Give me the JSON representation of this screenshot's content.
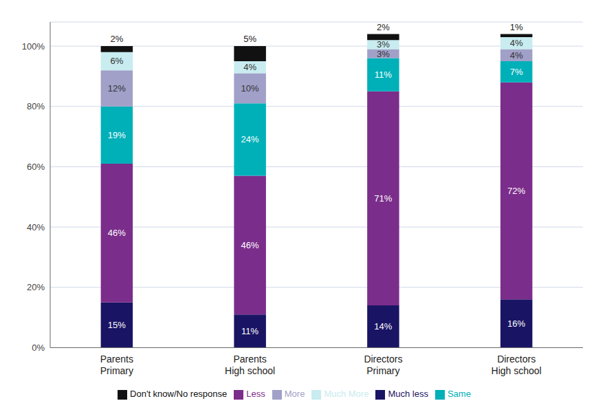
{
  "chart_data": {
    "type": "bar",
    "stacked": true,
    "categories": [
      "Parents\nPrimary",
      "Parents\nHigh school",
      "Directors\nPrimary",
      "Directors\nHigh school"
    ],
    "series": [
      {
        "name": "Much less",
        "color": "#1a1464",
        "values": [
          15,
          11,
          14,
          16
        ],
        "value_labels": [
          "15%",
          "11%",
          "14%",
          "16%"
        ]
      },
      {
        "name": "Less",
        "color": "#7b2d8b",
        "values": [
          46,
          46,
          71,
          72
        ],
        "value_labels": [
          "46%",
          "46%",
          "71%",
          "72%"
        ]
      },
      {
        "name": "Same",
        "color": "#00b0b9",
        "values": [
          19,
          24,
          11,
          7
        ],
        "value_labels": [
          "19%",
          "24%",
          "11%",
          "7%"
        ]
      },
      {
        "name": "More",
        "color": "#a0a0c8",
        "values": [
          12,
          10,
          3,
          4
        ],
        "value_labels": [
          "12%",
          "10%",
          "3%",
          "4%"
        ]
      },
      {
        "name": "Much More",
        "color": "#c8ecf0",
        "values": [
          6,
          4,
          3,
          4
        ],
        "value_labels": [
          "6%",
          "4%",
          "3%",
          "4%"
        ]
      },
      {
        "name": "Don't know/No response",
        "color": "#111111",
        "values": [
          2,
          5,
          2,
          1
        ],
        "value_labels": [
          "2%",
          "5%",
          "2%",
          "1%"
        ]
      }
    ],
    "data_labels": true,
    "ylim": [
      0,
      108
    ],
    "yticks": [
      {
        "value": 0,
        "label": "0%"
      },
      {
        "value": 20,
        "label": "20%"
      },
      {
        "value": 40,
        "label": "40%"
      },
      {
        "value": 60,
        "label": "60%"
      },
      {
        "value": 80,
        "label": "80%"
      },
      {
        "value": 100,
        "label": "100%"
      }
    ],
    "grid": true,
    "legend": "bottom"
  }
}
